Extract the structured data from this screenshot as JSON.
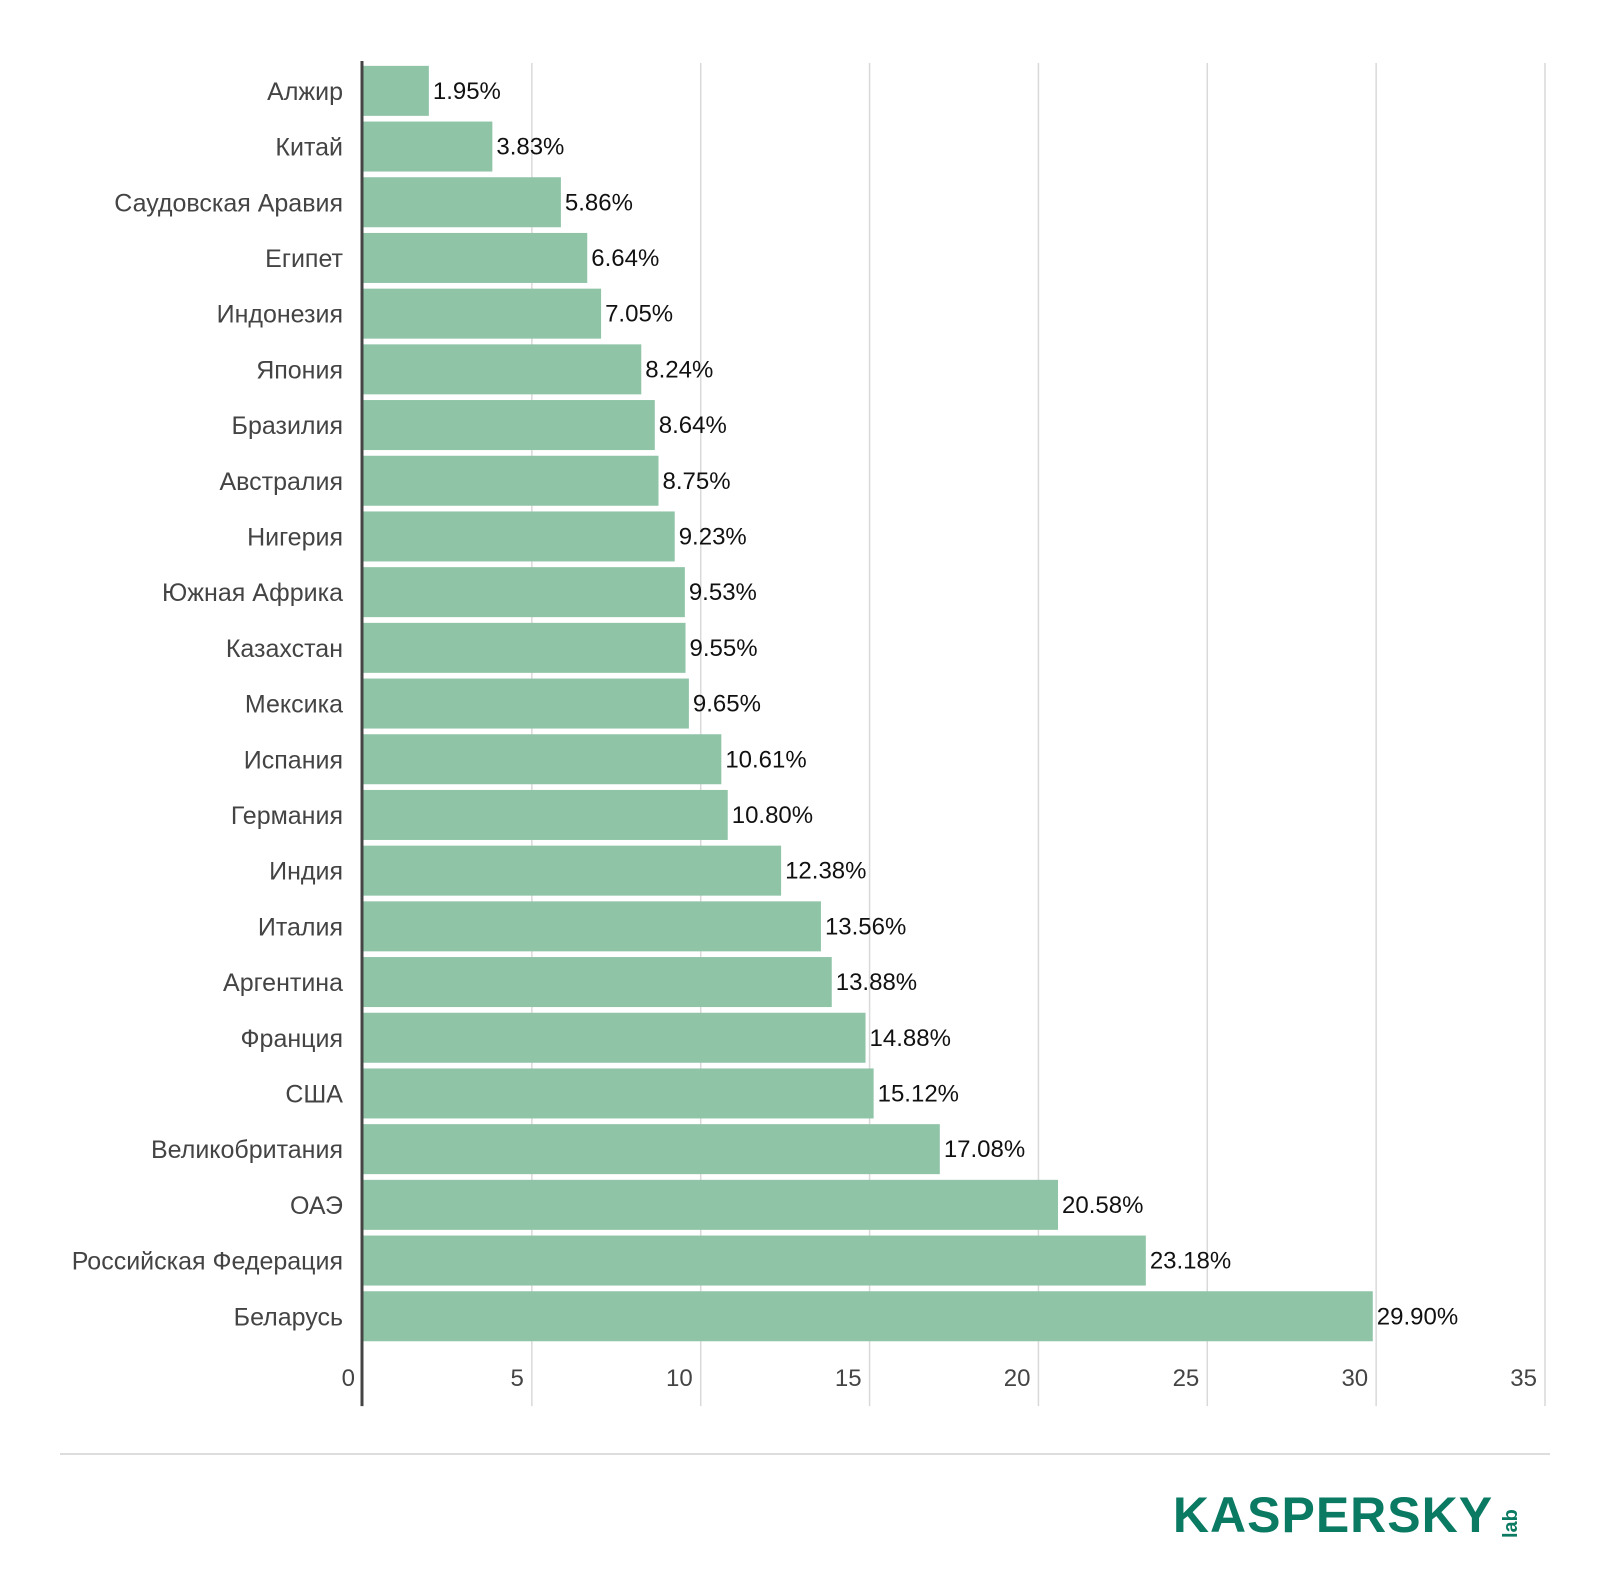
{
  "chart_data": {
    "type": "bar",
    "orientation": "horizontal",
    "categories": [
      "Алжир",
      "Китай",
      "Саудовская Аравия",
      "Египет",
      "Индонезия",
      "Япония",
      "Бразилия",
      "Австралия",
      "Нигерия",
      "Южная Африка",
      "Казахстан",
      "Мексика",
      "Испания",
      "Германия",
      "Индия",
      "Италия",
      "Аргентина",
      "Франция",
      "США",
      "Великобритания",
      "ОАЭ",
      "Российская Федерация",
      "Беларусь"
    ],
    "values": [
      1.95,
      3.83,
      5.86,
      6.64,
      7.05,
      8.24,
      8.64,
      8.75,
      9.23,
      9.53,
      9.55,
      9.65,
      10.61,
      10.8,
      12.38,
      13.56,
      13.88,
      14.88,
      15.12,
      17.08,
      20.58,
      23.18,
      29.9
    ],
    "value_labels": [
      "1.95%",
      "3.83%",
      "5.86%",
      "6.64%",
      "7.05%",
      "8.24%",
      "8.64%",
      "8.75%",
      "9.23%",
      "9.53%",
      "9.55%",
      "9.65%",
      "10.61%",
      "10.80%",
      "12.38%",
      "13.56%",
      "13.88%",
      "14.88%",
      "15.12%",
      "17.08%",
      "20.58%",
      "23.18%",
      "29.90%"
    ],
    "xlim": [
      0,
      35
    ],
    "x_ticks": [
      0,
      5,
      10,
      15,
      20,
      25,
      30,
      35
    ],
    "x_tick_labels": [
      "0",
      "5",
      "10",
      "15",
      "20",
      "25",
      "30",
      "35"
    ],
    "grid": "vertical",
    "bar_color": "#8fc4a7",
    "title": "",
    "xlabel": "",
    "ylabel": ""
  },
  "footer": {
    "logo_text": "KASPERSKY",
    "logo_sub": "lab",
    "logo_color": "#0a7a63"
  }
}
